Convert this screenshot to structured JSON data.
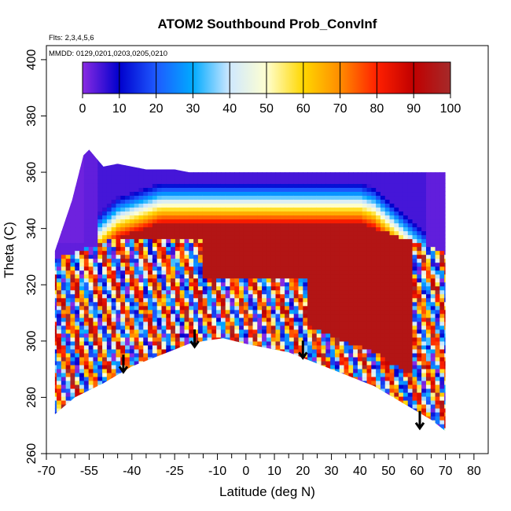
{
  "chart_data": {
    "type": "heatmap",
    "title": "ATOM2 Southbound Prob_ConvInf",
    "notes": [
      "Flts: 2,3,4,5,6",
      "MMDD: 0129,0201,0203,0205,0210"
    ],
    "xlabel": "Latitude (deg N)",
    "ylabel": "Theta (C)",
    "xlim": [
      -70,
      85
    ],
    "ylim": [
      260,
      405
    ],
    "x_ticks_major": [
      -70,
      -55,
      -40,
      -25,
      -10,
      0,
      10,
      20,
      30,
      40,
      50,
      60,
      70,
      80
    ],
    "x_ticks_minor": [
      -65,
      -60,
      -50,
      -45,
      -35,
      -30,
      -20,
      -15,
      -5,
      5,
      15,
      25,
      35,
      45,
      55,
      65,
      75
    ],
    "y_ticks": [
      260,
      280,
      300,
      320,
      340,
      360,
      380,
      400
    ],
    "colorbar": {
      "min": 0,
      "max": 100,
      "ticks": [
        0,
        10,
        20,
        30,
        40,
        50,
        60,
        70,
        80,
        90,
        100
      ],
      "colors": [
        "#8a2be2",
        "#0000cd",
        "#1e5aff",
        "#00aaff",
        "#cfe8ff",
        "#ffffd0",
        "#ffd700",
        "#ff8c00",
        "#ff2000",
        "#c00000",
        "#a52a2a"
      ]
    },
    "domain_upper": [
      [
        -67,
        332
      ],
      [
        -61,
        350
      ],
      [
        -57,
        366
      ],
      [
        -55,
        368
      ],
      [
        -50,
        362
      ],
      [
        -45,
        363
      ],
      [
        -40,
        362
      ],
      [
        -35,
        361
      ],
      [
        -30,
        361
      ],
      [
        -25,
        361
      ],
      [
        -20,
        360
      ],
      [
        -15,
        360
      ],
      [
        -10,
        360
      ],
      [
        -5,
        360
      ],
      [
        0,
        360
      ],
      [
        5,
        360
      ],
      [
        10,
        360
      ],
      [
        20,
        360
      ],
      [
        30,
        360
      ],
      [
        40,
        360
      ],
      [
        50,
        360
      ],
      [
        60,
        360
      ],
      [
        70,
        360
      ]
    ],
    "domain_lower": [
      [
        -67,
        274
      ],
      [
        -60,
        280
      ],
      [
        -50,
        285
      ],
      [
        -45,
        288
      ],
      [
        -40,
        291
      ],
      [
        -35,
        293
      ],
      [
        -30,
        295
      ],
      [
        -25,
        297
      ],
      [
        -20,
        299
      ],
      [
        -15,
        300
      ],
      [
        -8,
        301
      ],
      [
        0,
        299
      ],
      [
        5,
        298
      ],
      [
        10,
        297
      ],
      [
        15,
        296
      ],
      [
        20,
        294
      ],
      [
        25,
        292
      ],
      [
        30,
        290
      ],
      [
        35,
        288
      ],
      [
        40,
        286
      ],
      [
        45,
        284
      ],
      [
        50,
        281
      ],
      [
        55,
        278
      ],
      [
        60,
        275
      ],
      [
        65,
        272
      ],
      [
        70,
        268
      ]
    ],
    "arrows": [
      {
        "lat": -43,
        "theta": 289
      },
      {
        "lat": -18,
        "theta": 298
      },
      {
        "lat": 20,
        "theta": 294
      },
      {
        "lat": 61,
        "theta": 269
      }
    ],
    "core_region": {
      "lat": [
        -52,
        62
      ],
      "theta": [
        283,
        348
      ],
      "probability": 95
    }
  }
}
